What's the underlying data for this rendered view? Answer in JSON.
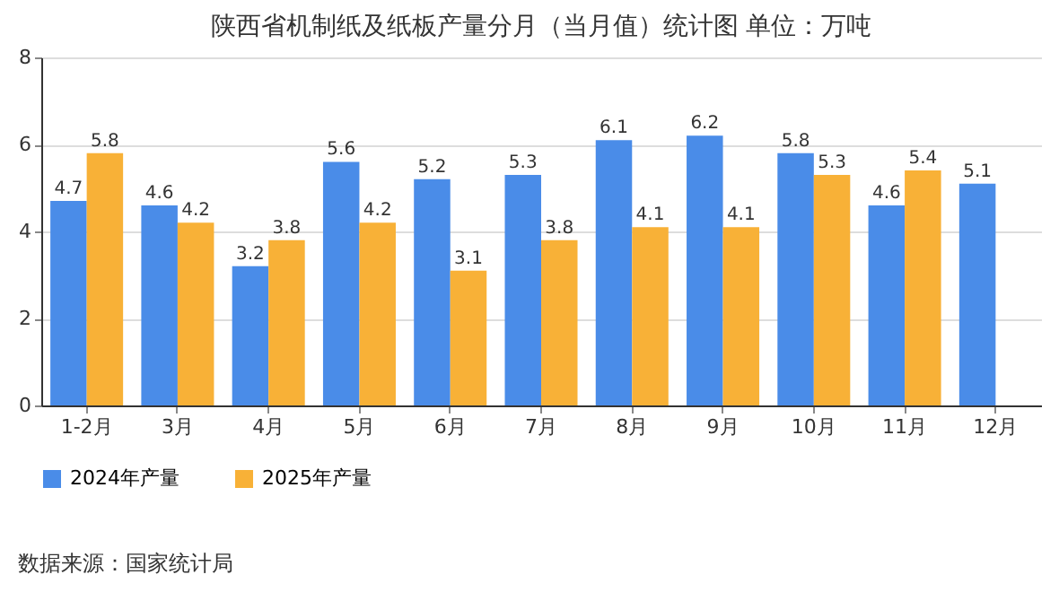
{
  "chart_data": {
    "type": "bar",
    "title": "陕西省机制纸及纸板产量分月（当月值）统计图 单位：万吨",
    "categories": [
      "1-2月",
      "3月",
      "4月",
      "5月",
      "6月",
      "7月",
      "8月",
      "9月",
      "10月",
      "11月",
      "12月"
    ],
    "series": [
      {
        "name": "2024年产量",
        "color": "#4a8ce8",
        "values": [
          4.7,
          4.6,
          3.2,
          5.6,
          5.2,
          5.3,
          6.1,
          6.2,
          5.8,
          4.6,
          5.1
        ]
      },
      {
        "name": "2025年产量",
        "color": "#f8b137",
        "values": [
          5.8,
          4.2,
          3.8,
          4.2,
          3.1,
          3.8,
          4.1,
          4.1,
          5.3,
          5.4,
          null
        ]
      }
    ],
    "ylim": [
      0,
      8
    ],
    "yticks": [
      0,
      2,
      4,
      6,
      8
    ],
    "grid": "y",
    "legend": "bottom",
    "data_labels": true,
    "annotations": [
      "数据来源：国家统计局"
    ]
  }
}
